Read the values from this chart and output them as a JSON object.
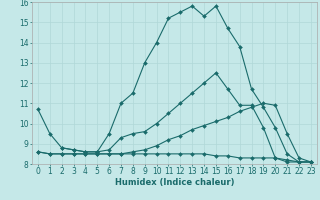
{
  "xlabel": "Humidex (Indice chaleur)",
  "bg_color": "#c5e8e8",
  "line_color": "#1a6b6b",
  "grid_color": "#b0d8d8",
  "xlim": [
    -0.5,
    23.5
  ],
  "ylim": [
    8,
    16
  ],
  "xticks": [
    0,
    1,
    2,
    3,
    4,
    5,
    6,
    7,
    8,
    9,
    10,
    11,
    12,
    13,
    14,
    15,
    16,
    17,
    18,
    19,
    20,
    21,
    22,
    23
  ],
  "yticks": [
    8,
    9,
    10,
    11,
    12,
    13,
    14,
    15,
    16
  ],
  "lines": [
    {
      "x": [
        0,
        1,
        2,
        3,
        4,
        5,
        6,
        7,
        8,
        9,
        10,
        11,
        12,
        13,
        14,
        15,
        16,
        17,
        18,
        19,
        20,
        21,
        22,
        23
      ],
      "y": [
        10.7,
        9.5,
        8.8,
        8.7,
        8.6,
        8.6,
        9.5,
        11.0,
        11.5,
        13.0,
        14.0,
        15.2,
        15.5,
        15.8,
        15.3,
        15.8,
        14.7,
        13.8,
        11.7,
        10.8,
        9.8,
        8.5,
        8.1,
        8.1
      ]
    },
    {
      "x": [
        2,
        3,
        4,
        5,
        6,
        7,
        8,
        9,
        10,
        11,
        12,
        13,
        14,
        15,
        16,
        17,
        18,
        19,
        20,
        21,
        22,
        23
      ],
      "y": [
        8.8,
        8.7,
        8.6,
        8.6,
        8.7,
        9.3,
        9.5,
        9.6,
        10.0,
        10.5,
        11.0,
        11.5,
        12.0,
        12.5,
        11.7,
        10.9,
        10.9,
        9.8,
        8.3,
        8.1,
        8.1,
        8.1
      ]
    },
    {
      "x": [
        0,
        1,
        2,
        3,
        4,
        5,
        6,
        7,
        8,
        9,
        10,
        11,
        12,
        13,
        14,
        15,
        16,
        17,
        18,
        19,
        20,
        21,
        22,
        23
      ],
      "y": [
        8.6,
        8.5,
        8.5,
        8.5,
        8.5,
        8.5,
        8.5,
        8.5,
        8.6,
        8.7,
        8.9,
        9.2,
        9.4,
        9.7,
        9.9,
        10.1,
        10.3,
        10.6,
        10.8,
        11.0,
        10.9,
        9.5,
        8.3,
        8.1
      ]
    },
    {
      "x": [
        0,
        1,
        2,
        3,
        4,
        5,
        6,
        7,
        8,
        9,
        10,
        11,
        12,
        13,
        14,
        15,
        16,
        17,
        18,
        19,
        20,
        21,
        22,
        23
      ],
      "y": [
        8.6,
        8.5,
        8.5,
        8.5,
        8.5,
        8.5,
        8.5,
        8.5,
        8.5,
        8.5,
        8.5,
        8.5,
        8.5,
        8.5,
        8.5,
        8.4,
        8.4,
        8.3,
        8.3,
        8.3,
        8.3,
        8.2,
        8.1,
        8.1
      ]
    }
  ]
}
